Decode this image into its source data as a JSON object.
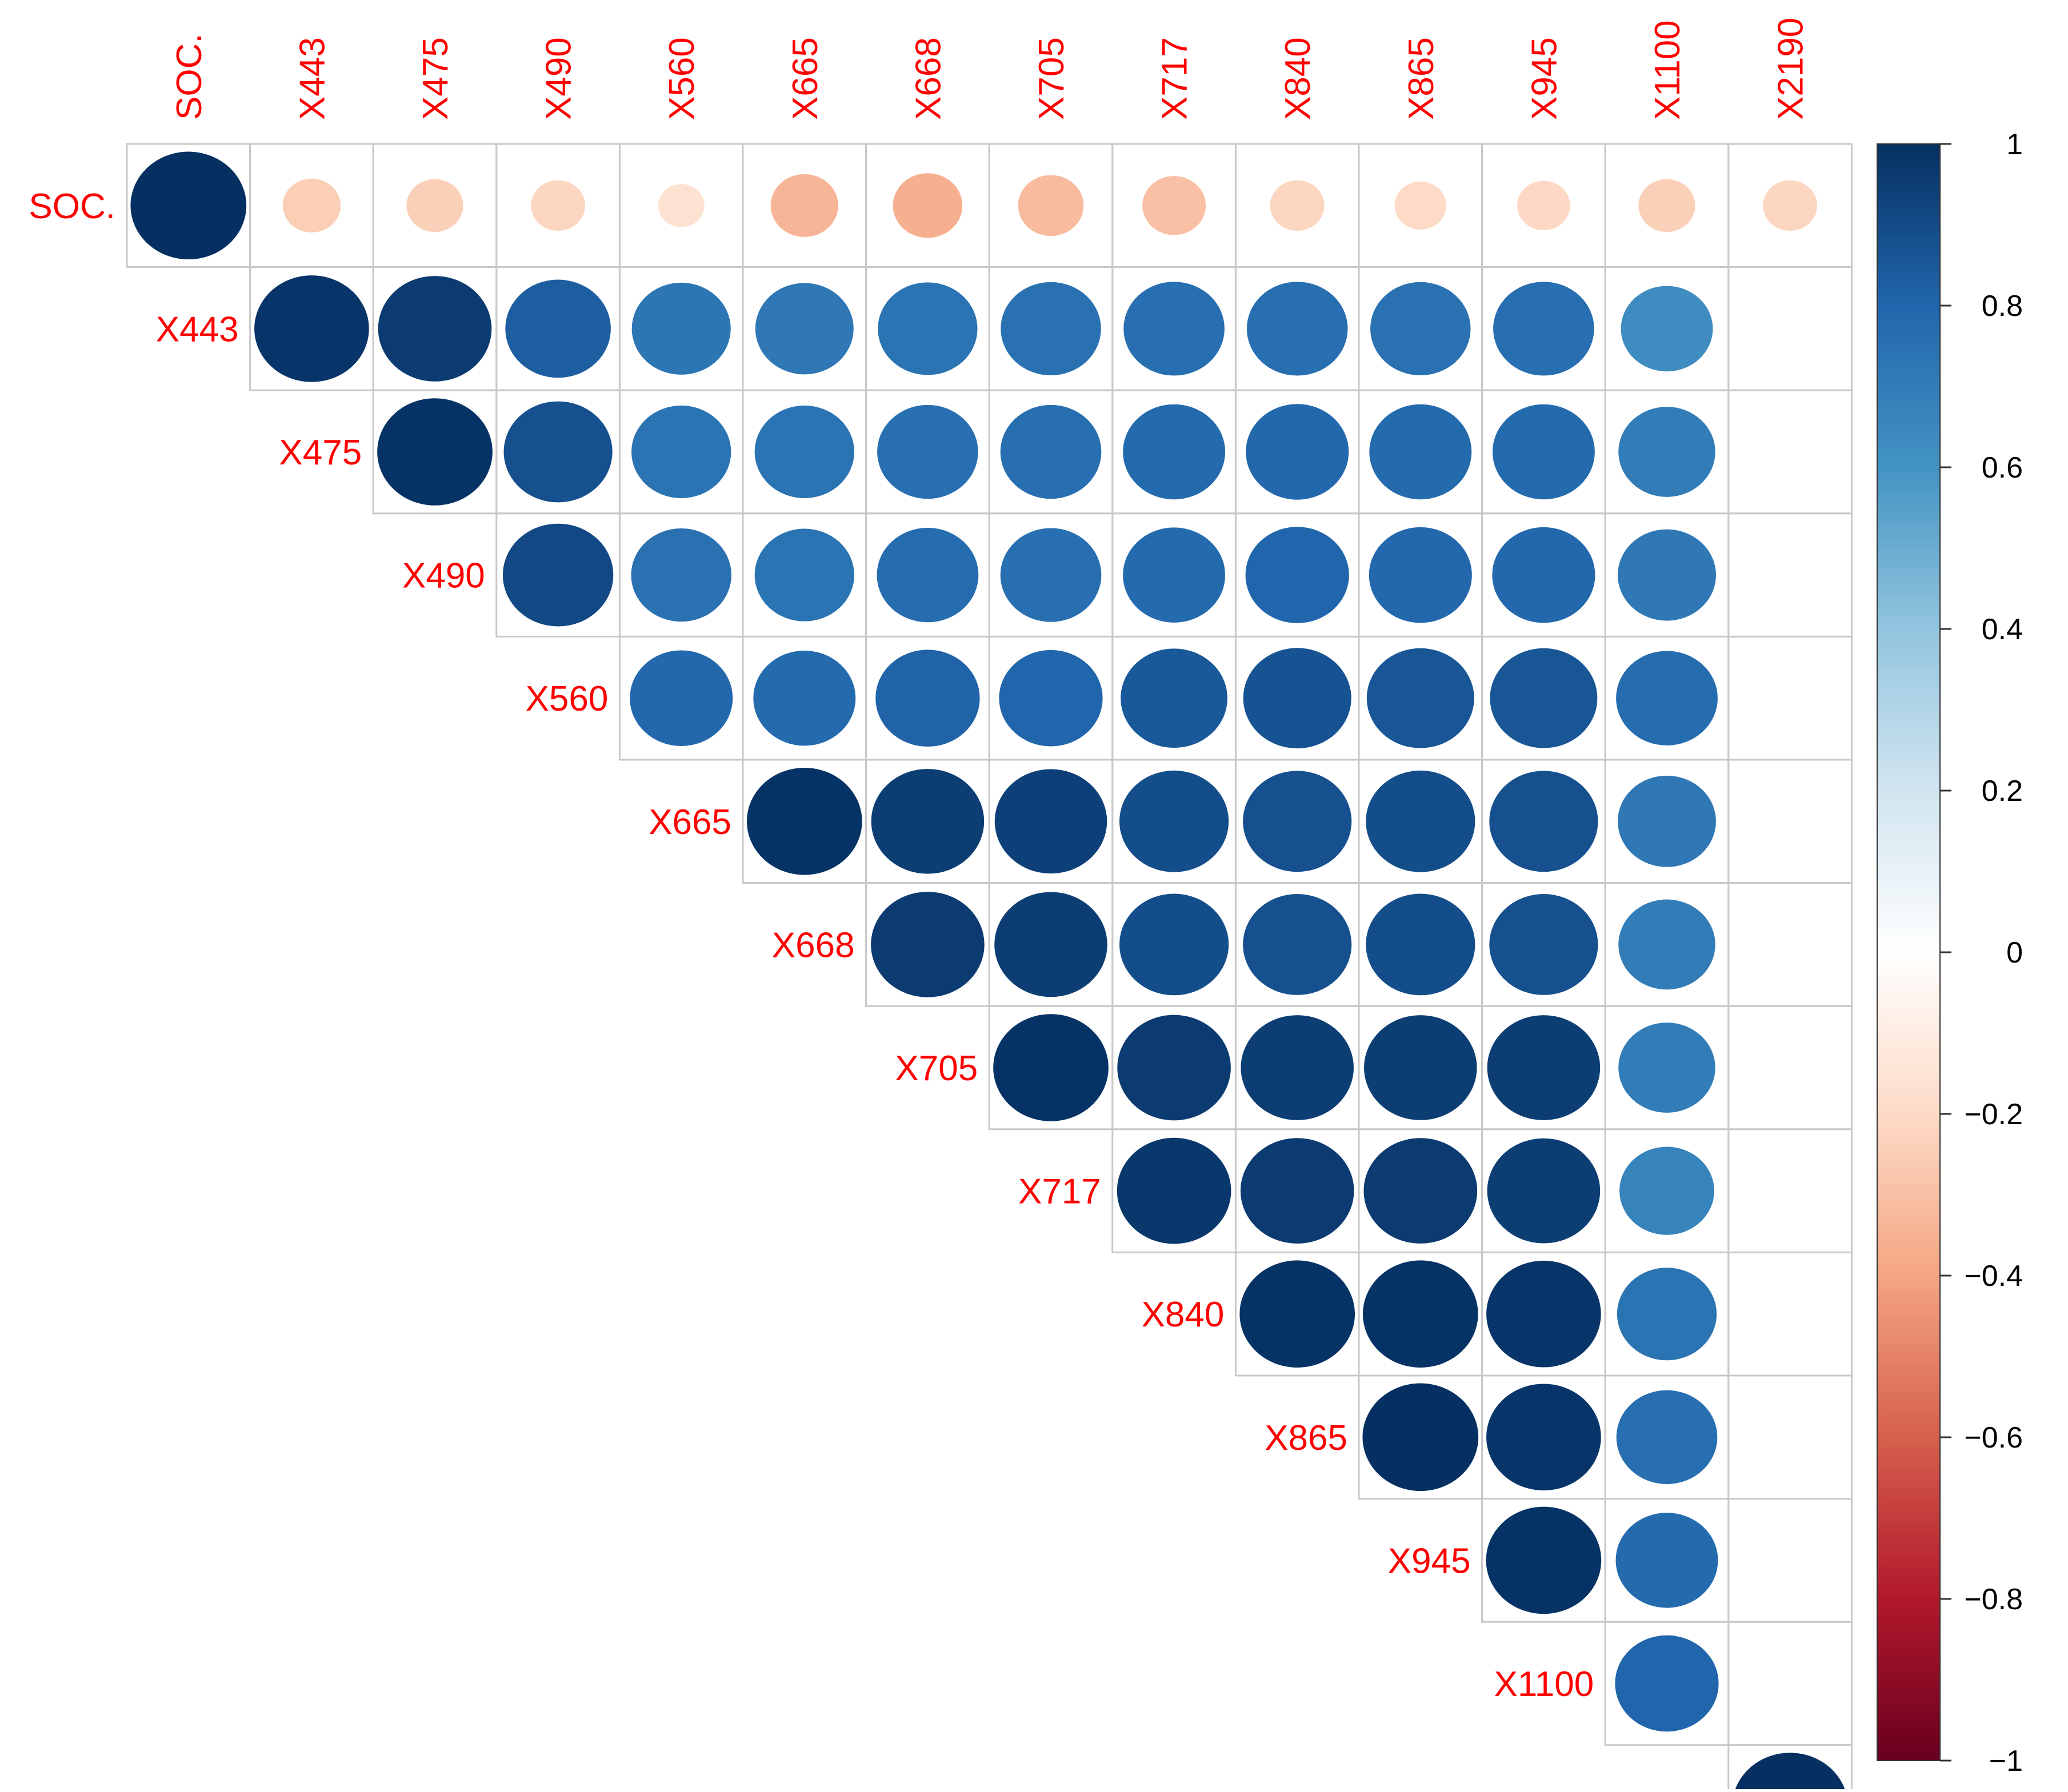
{
  "chart_data": {
    "type": "heatmap",
    "style": "correlation-circle-upper",
    "variables": [
      "SOC.",
      "X443",
      "X475",
      "X490",
      "X560",
      "X665",
      "X668",
      "X705",
      "X717",
      "X840",
      "X865",
      "X945",
      "X1100",
      "X2190"
    ],
    "correlation_upper": [
      [
        1.0,
        -0.25,
        -0.24,
        -0.22,
        -0.16,
        -0.34,
        -0.36,
        -0.32,
        -0.3,
        -0.22,
        -0.2,
        -0.21,
        -0.24,
        -0.22
      ],
      [
        0.98,
        0.96,
        0.83,
        0.73,
        0.72,
        0.74,
        0.75,
        0.76,
        0.76,
        0.75,
        0.76,
        0.63
      ],
      [
        0.99,
        0.88,
        0.74,
        0.74,
        0.76,
        0.76,
        0.78,
        0.79,
        0.78,
        0.78,
        0.7
      ],
      [
        0.91,
        0.75,
        0.74,
        0.77,
        0.76,
        0.78,
        0.8,
        0.79,
        0.79,
        0.72
      ],
      [
        0.79,
        0.78,
        0.81,
        0.8,
        0.85,
        0.87,
        0.86,
        0.86,
        0.77
      ],
      [
        0.99,
        0.95,
        0.94,
        0.89,
        0.88,
        0.89,
        0.88,
        0.72
      ],
      [
        0.96,
        0.95,
        0.89,
        0.88,
        0.89,
        0.88,
        0.7
      ],
      [
        0.99,
        0.96,
        0.95,
        0.95,
        0.95,
        0.7
      ],
      [
        0.97,
        0.96,
        0.96,
        0.95,
        0.67
      ],
      [
        0.99,
        0.99,
        0.98,
        0.74
      ],
      [
        1.0,
        0.98,
        0.76
      ],
      [
        0.99,
        0.78
      ],
      [
        0.8
      ],
      [
        1.0
      ]
    ],
    "color_scale": {
      "range": [
        -1,
        1
      ],
      "stops": [
        {
          "value": -1.0,
          "color": "#67001f"
        },
        {
          "value": -0.8,
          "color": "#b2182b"
        },
        {
          "value": -0.6,
          "color": "#d6604d"
        },
        {
          "value": -0.4,
          "color": "#f4a582"
        },
        {
          "value": -0.2,
          "color": "#fddbc7"
        },
        {
          "value": 0.0,
          "color": "#ffffff"
        },
        {
          "value": 0.2,
          "color": "#d1e5f0"
        },
        {
          "value": 0.4,
          "color": "#92c5de"
        },
        {
          "value": 0.6,
          "color": "#4393c3"
        },
        {
          "value": 0.8,
          "color": "#2166ac"
        },
        {
          "value": 1.0,
          "color": "#053061"
        }
      ],
      "ticks": [
        1,
        0.8,
        0.6,
        0.4,
        0.2,
        0,
        -0.2,
        -0.4,
        -0.6,
        -0.8,
        -1
      ],
      "tick_labels": [
        "1",
        "0.8",
        "0.6",
        "0.4",
        "0.2",
        "0",
        "−0.2",
        "−0.4",
        "−0.6",
        "−0.8",
        "−1"
      ]
    },
    "label_color": "#ff0000",
    "legend_position": "right"
  }
}
